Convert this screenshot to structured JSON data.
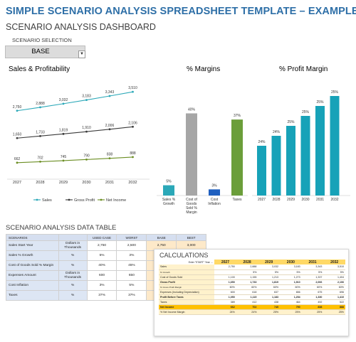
{
  "header": {
    "title": "SIMPLE SCENARIO ANALYSIS SPREADSHEET TEMPLATE – EXAMPLE",
    "subtitle": "SCENARIO ANALYSIS DASHBOARD"
  },
  "scenario_selection": {
    "label": "SCENARIO SELECTION",
    "value": "BASE"
  },
  "chart_data": [
    {
      "type": "line",
      "title": "Sales & Profitability",
      "categories": [
        "2027",
        "2028",
        "2029",
        "2030",
        "2031",
        "2032"
      ],
      "series": [
        {
          "name": "Sales",
          "color": "#2ba8b8",
          "values": [
            2750,
            2888,
            3032,
            3183,
            3343,
            3510
          ],
          "labels": [
            "2,750",
            "2,888",
            "3,032",
            "3,183",
            "3,343",
            "3,510"
          ]
        },
        {
          "name": "Gross Profit",
          "color": "#3a3a3a",
          "values": [
            1650,
            1733,
            1819,
            1910,
            2006,
            2106
          ],
          "labels": [
            "1,650",
            "1,733",
            "1,819",
            "1,910",
            "2,006",
            "2,106"
          ]
        },
        {
          "name": "Net Income",
          "color": "#6b8e23",
          "values": [
            662,
            702,
            745,
            790,
            838,
            888
          ],
          "labels": [
            "662",
            "702",
            "745",
            "790",
            "838",
            "888"
          ]
        }
      ],
      "ylim": [
        0,
        4000
      ],
      "legend": "bottom"
    },
    {
      "type": "bar",
      "title": "% Margins",
      "categories": [
        "Sales % Growth",
        "Cost of Goods Sold % Margin",
        "Cost Inflation",
        "Taxes"
      ],
      "values": [
        5,
        40,
        3,
        37
      ],
      "labels": [
        "5%",
        "40%",
        "3%",
        "37%"
      ],
      "colors": [
        "#2ba8b8",
        "#a6a6a6",
        "#1f5fbf",
        "#6b9e3a"
      ],
      "ylim": [
        0,
        45
      ]
    },
    {
      "type": "bar",
      "title": "% Profit Margin",
      "categories": [
        "2027",
        "2028",
        "2029",
        "2030",
        "2031",
        "2032"
      ],
      "values": [
        24,
        24,
        25,
        25,
        25,
        25
      ],
      "labels": [
        "24%",
        "24%",
        "25%",
        "25%",
        "25%",
        "25%"
      ],
      "color": "#17a2b8"
    }
  ],
  "data_table": {
    "title": "SCENARIO ANALYSIS DATA TABLE",
    "headers": [
      "SCENARIOS",
      "",
      "USED CASE",
      "WORST",
      "BASE",
      "BEST"
    ],
    "rows": [
      {
        "label": "Sales Start Year",
        "unit": "Dollars in Thousands",
        "used": "2,750",
        "worst": "2,500",
        "base": "2,750",
        "best": "3,000"
      },
      {
        "label": "Sales % Growth",
        "unit": "%",
        "used": "5%",
        "worst": "3%",
        "base": "",
        "best": ""
      },
      {
        "label": "Cost of Goods Sold % Margin",
        "unit": "%",
        "used": "40%",
        "worst": "45%",
        "base": "",
        "best": ""
      },
      {
        "label": "Expenses Amount",
        "unit": "Dollars in Thousands",
        "used": "600",
        "worst": "650",
        "base": "",
        "best": ""
      },
      {
        "label": "Cost Inflation",
        "unit": "%",
        "used": "3%",
        "worst": "5%",
        "base": "",
        "best": ""
      },
      {
        "label": "Taxes",
        "unit": "%",
        "used": "37%",
        "worst": "37%",
        "base": "",
        "best": ""
      }
    ]
  },
  "calculations": {
    "title": "CALCULATIONS",
    "hint": "Enter \"START\" Year →",
    "years": [
      "2027",
      "2028",
      "2029",
      "2030",
      "2031",
      "2032"
    ],
    "rows": [
      {
        "label": "Sales",
        "values": [
          "2,750",
          "2,888",
          "3,032",
          "3,183",
          "3,343",
          "3,510"
        ],
        "style": ""
      },
      {
        "label": "% Growth",
        "values": [
          "",
          "5%",
          "5%",
          "5%",
          "5%",
          "5%"
        ],
        "style": "sub"
      },
      {
        "label": "Cost of Goods Sold",
        "values": [
          "1,100",
          "1,155",
          "1,213",
          "1,273",
          "1,337",
          "1,404"
        ],
        "style": ""
      },
      {
        "label": "Gross Profit",
        "values": [
          "1,650",
          "1,733",
          "1,819",
          "1,910",
          "2,006",
          "2,106"
        ],
        "style": "bold"
      },
      {
        "label": "% Gross Profit Margin",
        "values": [
          "60%",
          "60%",
          "60%",
          "60%",
          "60%",
          "60%"
        ],
        "style": "sub"
      },
      {
        "label": "Expenses (Including Depreciation)",
        "values": [
          "600",
          "618",
          "637",
          "656",
          "675",
          "696"
        ],
        "style": ""
      },
      {
        "label": "Profit Before Taxes",
        "values": [
          "1,050",
          "1,115",
          "1,183",
          "1,254",
          "1,330",
          "1,410"
        ],
        "style": "bold"
      },
      {
        "label": "Taxes",
        "values": [
          "389",
          "412",
          "438",
          "464",
          "492",
          "522"
        ],
        "style": ""
      },
      {
        "label": "Net Income",
        "values": [
          "662",
          "702",
          "745",
          "790",
          "838",
          "888"
        ],
        "style": "net"
      },
      {
        "label": "% Net Income Margin",
        "values": [
          "24%",
          "24%",
          "25%",
          "25%",
          "25%",
          "25%"
        ],
        "style": "net2"
      }
    ]
  }
}
